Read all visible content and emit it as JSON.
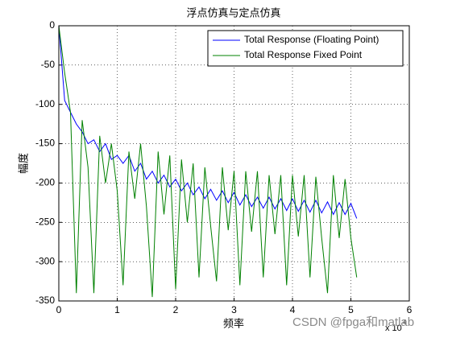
{
  "chart_data": {
    "type": "line",
    "title": "浮点仿真与定点仿真",
    "xlabel": "频率",
    "ylabel": "幅度",
    "x_scale": {
      "base": "x 10",
      "exponent": "4"
    },
    "watermark": "CSDN @fpga和matlab",
    "xlim": [
      0,
      6
    ],
    "ylim": [
      -350,
      0
    ],
    "xticks": [
      0,
      1,
      2,
      3,
      4,
      5,
      6
    ],
    "yticks": [
      0,
      -50,
      -100,
      -150,
      -200,
      -250,
      -300,
      -350
    ],
    "grid": true,
    "legend": "top-right",
    "x": [
      0,
      0.1,
      0.2,
      0.3,
      0.4,
      0.5,
      0.6,
      0.7,
      0.8,
      0.9,
      1.0,
      1.1,
      1.2,
      1.3,
      1.4,
      1.5,
      1.6,
      1.7,
      1.8,
      1.9,
      2.0,
      2.1,
      2.2,
      2.3,
      2.4,
      2.5,
      2.6,
      2.7,
      2.8,
      2.9,
      3.0,
      3.1,
      3.2,
      3.3,
      3.4,
      3.5,
      3.6,
      3.7,
      3.8,
      3.9,
      4.0,
      4.1,
      4.2,
      4.3,
      4.4,
      4.5,
      4.6,
      4.7,
      4.8,
      4.9,
      5.0,
      5.1
    ],
    "series": [
      {
        "name": "Total Response (Floating Point)",
        "color": "#0000ff",
        "values": [
          0,
          -95,
          -110,
          -125,
          -135,
          -150,
          -145,
          -160,
          -150,
          -170,
          -165,
          -175,
          -165,
          -185,
          -175,
          -195,
          -185,
          -200,
          -190,
          -205,
          -195,
          -210,
          -200,
          -215,
          -205,
          -220,
          -208,
          -222,
          -210,
          -225,
          -212,
          -228,
          -215,
          -230,
          -218,
          -232,
          -218,
          -233,
          -220,
          -235,
          -220,
          -236,
          -222,
          -237,
          -222,
          -238,
          -224,
          -240,
          -225,
          -240,
          -226,
          -245
        ]
      },
      {
        "name": "Total Response Fixed Point",
        "color": "#008000",
        "values": [
          0,
          -60,
          -110,
          -340,
          -120,
          -180,
          -340,
          -140,
          -200,
          -150,
          -210,
          -330,
          -160,
          -220,
          -150,
          -230,
          -345,
          -160,
          -240,
          -165,
          -335,
          -170,
          -250,
          -175,
          -320,
          -180,
          -255,
          -325,
          -180,
          -260,
          -185,
          -330,
          -185,
          -262,
          -185,
          -320,
          -190,
          -265,
          -190,
          -330,
          -190,
          -268,
          -190,
          -320,
          -192,
          -270,
          -340,
          -190,
          -270,
          -195,
          -270,
          -320
        ]
      }
    ]
  }
}
